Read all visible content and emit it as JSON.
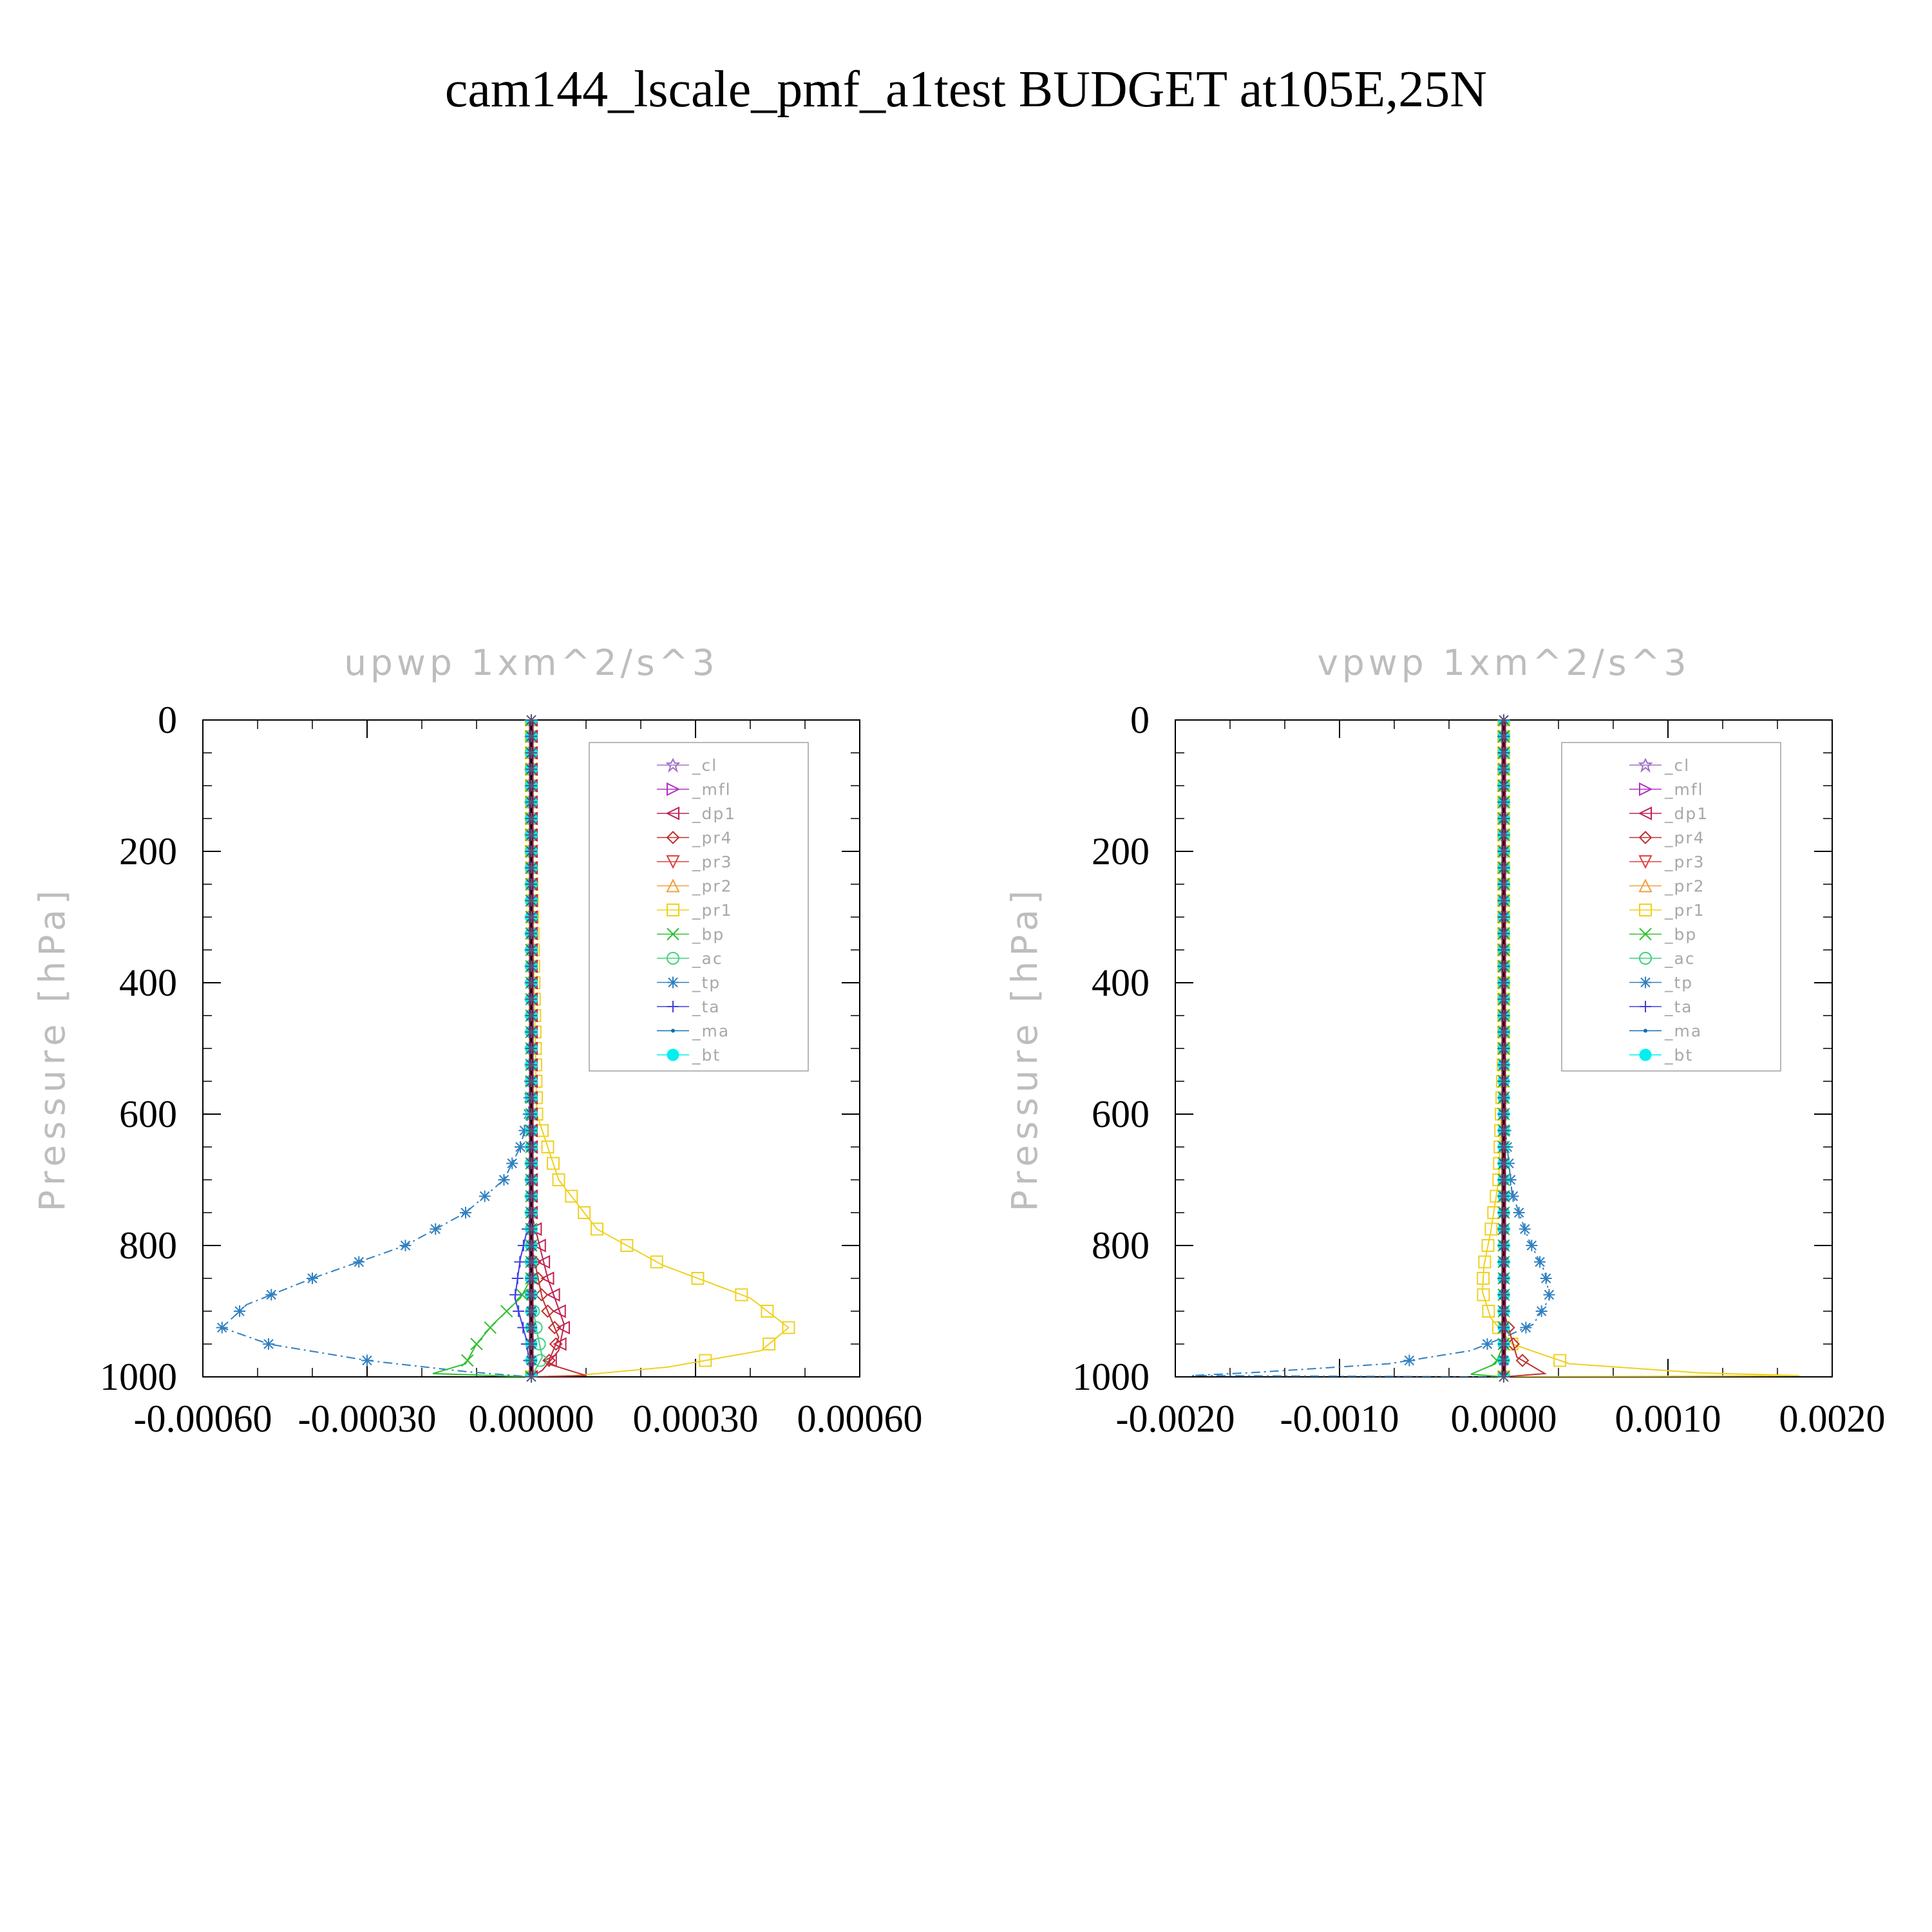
{
  "figure": {
    "title": "cam144_lscale_pmf_a1test  BUDGET at105E,25N"
  },
  "legend_entries": [
    {
      "name": "_cl",
      "color": "#a070c8",
      "marker": "star"
    },
    {
      "name": "_mfl",
      "color": "#b030c0",
      "marker": "tri-right"
    },
    {
      "name": "_dp1",
      "color": "#c02050",
      "marker": "tri-left"
    },
    {
      "name": "_pr4",
      "color": "#c03030",
      "marker": "diamond"
    },
    {
      "name": "_pr3",
      "color": "#e04040",
      "marker": "tri-down"
    },
    {
      "name": "_pr2",
      "color": "#f0a040",
      "marker": "tri-up"
    },
    {
      "name": "_pr1",
      "color": "#f0d020",
      "marker": "square"
    },
    {
      "name": "_bp",
      "color": "#30c030",
      "marker": "x"
    },
    {
      "name": "_ac",
      "color": "#40d080",
      "marker": "circle"
    },
    {
      "name": "_tp",
      "color": "#3080c0",
      "marker": "asterisk"
    },
    {
      "name": "_ta",
      "color": "#4040e0",
      "marker": "plus"
    },
    {
      "name": "_ma",
      "color": "#1070b0",
      "marker": "dot"
    },
    {
      "name": "_bt",
      "color": "#00f0f0",
      "marker": "filled-circle"
    }
  ],
  "chart_data": [
    {
      "type": "line",
      "title": "upwp   1xm^2/s^3",
      "ylabel": "Pressure [hPa]",
      "xlabel": "",
      "xlim": [
        -0.0006,
        0.0006
      ],
      "ylim": [
        1000,
        0
      ],
      "xticks": [
        -0.0006,
        -0.0003,
        0.0,
        0.0003,
        0.0006
      ],
      "xtick_labels": [
        "-0.00060",
        "-0.00030",
        "0.00000",
        "0.00030",
        "0.00060"
      ],
      "yticks": [
        0,
        200,
        400,
        600,
        800,
        1000
      ],
      "ytick_labels": [
        "0",
        "200",
        "400",
        "600",
        "800",
        "1000"
      ],
      "legend_position": "top-right",
      "series": [
        {
          "name": "_tp",
          "color": "#3080c0",
          "marker": "asterisk",
          "dashed": true,
          "points": [
            [
              0,
              0
            ],
            [
              0,
              100
            ],
            [
              0,
              300
            ],
            [
              0,
              500
            ],
            [
              -5e-06,
              600
            ],
            [
              -2e-05,
              650
            ],
            [
              -5e-05,
              700
            ],
            [
              -0.00012,
              750
            ],
            [
              -0.00023,
              800
            ],
            [
              -0.0004,
              850
            ],
            [
              -0.00052,
              890
            ],
            [
              -0.000565,
              925
            ],
            [
              -0.00048,
              950
            ],
            [
              -0.0003,
              975
            ],
            [
              -0.00012,
              992
            ],
            [
              0,
              1000
            ]
          ]
        },
        {
          "name": "_pr1",
          "color": "#f0d020",
          "marker": "square",
          "points": [
            [
              0,
              0
            ],
            [
              0,
              200
            ],
            [
              5e-06,
              400
            ],
            [
              1e-05,
              600
            ],
            [
              5e-05,
              700
            ],
            [
              0.00012,
              775
            ],
            [
              0.00024,
              830
            ],
            [
              0.0004,
              880
            ],
            [
              0.00047,
              925
            ],
            [
              0.00042,
              960
            ],
            [
              0.00025,
              985
            ],
            [
              8e-05,
              998
            ],
            [
              0,
              1000
            ]
          ]
        },
        {
          "name": "_bp",
          "color": "#30c030",
          "marker": "x",
          "points": [
            [
              0,
              0
            ],
            [
              0,
              850
            ],
            [
              -2e-05,
              880
            ],
            [
              -7e-05,
              920
            ],
            [
              -0.0001,
              950
            ],
            [
              -0.00012,
              980
            ],
            [
              -0.00018,
              995
            ],
            [
              0,
              1000
            ]
          ]
        },
        {
          "name": "_dp1",
          "color": "#c02050",
          "marker": "tri-left",
          "points": [
            [
              0,
              0
            ],
            [
              0,
              750
            ],
            [
              3e-05,
              850
            ],
            [
              6e-05,
              920
            ],
            [
              5e-05,
              960
            ],
            [
              2e-05,
              990
            ],
            [
              0,
              1000
            ]
          ]
        },
        {
          "name": "_pr4",
          "color": "#c03030",
          "marker": "diamond",
          "points": [
            [
              0,
              0
            ],
            [
              0,
              800
            ],
            [
              2e-05,
              880
            ],
            [
              5e-05,
              940
            ],
            [
              3e-05,
              980
            ],
            [
              0.0001,
              998
            ],
            [
              0,
              1000
            ]
          ]
        },
        {
          "name": "_ta",
          "color": "#4040e0",
          "marker": "plus",
          "points": [
            [
              0,
              0
            ],
            [
              0,
              750
            ],
            [
              -2e-05,
              820
            ],
            [
              -3e-05,
              880
            ],
            [
              -1e-05,
              940
            ],
            [
              0,
              1000
            ]
          ]
        },
        {
          "name": "_ac",
          "color": "#40d080",
          "marker": "circle",
          "points": [
            [
              0,
              0
            ],
            [
              0,
              880
            ],
            [
              1e-05,
              930
            ],
            [
              2e-05,
              970
            ],
            [
              0,
              1000
            ]
          ]
        },
        {
          "name": "_bt",
          "color": "#00f0f0",
          "marker": "filled-circle",
          "points": [
            [
              0,
              0
            ],
            [
              0,
              1000
            ]
          ]
        }
      ]
    },
    {
      "type": "line",
      "title": "vpwp   1xm^2/s^3",
      "ylabel": "Pressure [hPa]",
      "xlabel": "",
      "xlim": [
        -0.002,
        0.002
      ],
      "ylim": [
        1000,
        0
      ],
      "xticks": [
        -0.002,
        -0.001,
        0.0,
        0.001,
        0.002
      ],
      "xtick_labels": [
        "-0.0020",
        "-0.0010",
        "0.0000",
        "0.0010",
        "0.0020"
      ],
      "yticks": [
        0,
        200,
        400,
        600,
        800,
        1000
      ],
      "ytick_labels": [
        "0",
        "200",
        "400",
        "600",
        "800",
        "1000"
      ],
      "legend_position": "top-right",
      "series": [
        {
          "name": "_tp",
          "color": "#3080c0",
          "marker": "asterisk",
          "dashed": true,
          "points": [
            [
              0,
              0
            ],
            [
              0,
              600
            ],
            [
              5e-05,
              720
            ],
            [
              0.00015,
              790
            ],
            [
              0.00025,
              840
            ],
            [
              0.00028,
              880
            ],
            [
              0.00018,
              920
            ],
            [
              0,
              940
            ],
            [
              -0.0002,
              960
            ],
            [
              -0.0007,
              980
            ],
            [
              -0.0015,
              993
            ],
            [
              -0.0019,
              998
            ],
            [
              0,
              1000
            ]
          ]
        },
        {
          "name": "_pr1",
          "color": "#f0d020",
          "marker": "square",
          "points": [
            [
              0,
              0
            ],
            [
              0,
              500
            ],
            [
              -3e-05,
              700
            ],
            [
              -8e-05,
              780
            ],
            [
              -0.00012,
              830
            ],
            [
              -0.00013,
              870
            ],
            [
              -8e-05,
              910
            ],
            [
              5e-05,
              950
            ],
            [
              0.0004,
              980
            ],
            [
              0.0012,
              994
            ],
            [
              0.0018,
              998
            ],
            [
              0,
              1000
            ]
          ]
        },
        {
          "name": "_pr4",
          "color": "#c03030",
          "marker": "diamond",
          "points": [
            [
              0,
              0
            ],
            [
              0,
              900
            ],
            [
              8e-05,
              970
            ],
            [
              0.00025,
              995
            ],
            [
              0,
              1000
            ]
          ]
        },
        {
          "name": "_bp",
          "color": "#30c030",
          "marker": "x",
          "points": [
            [
              0,
              0
            ],
            [
              0,
              950
            ],
            [
              -5e-05,
              980
            ],
            [
              -0.0002,
              996
            ],
            [
              0,
              1000
            ]
          ]
        },
        {
          "name": "_bt",
          "color": "#00f0f0",
          "marker": "filled-circle",
          "points": [
            [
              0,
              0
            ],
            [
              0,
              1000
            ]
          ]
        }
      ]
    }
  ]
}
